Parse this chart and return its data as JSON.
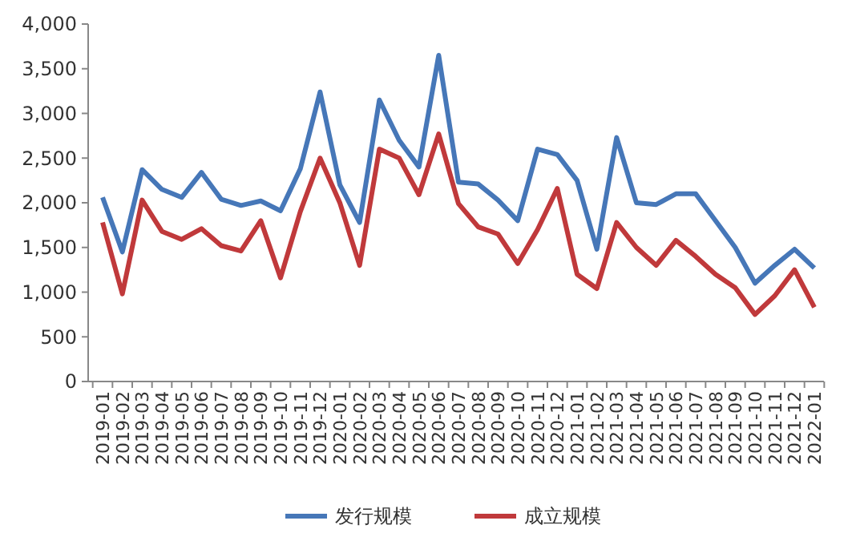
{
  "chart_data": {
    "type": "line",
    "categories": [
      "2019-01",
      "2019-02",
      "2019-03",
      "2019-04",
      "2019-05",
      "2019-06",
      "2019-07",
      "2019-08",
      "2019-09",
      "2019-10",
      "2019-11",
      "2019-12",
      "2020-01",
      "2020-02",
      "2020-03",
      "2020-04",
      "2020-05",
      "2020-06",
      "2020-07",
      "2020-08",
      "2020-09",
      "2020-10",
      "2020-11",
      "2020-12",
      "2021-01",
      "2021-02",
      "2021-03",
      "2021-04",
      "2021-05",
      "2021-06",
      "2021-07",
      "2021-08",
      "2021-09",
      "2021-10",
      "2021-11",
      "2021-12",
      "2022-01"
    ],
    "series": [
      {
        "name": "发行规模",
        "color": "#4677b8",
        "values": [
          2060,
          1450,
          2370,
          2150,
          2060,
          2340,
          2040,
          1970,
          2020,
          1910,
          2380,
          3240,
          2200,
          1780,
          3150,
          2700,
          2400,
          3650,
          2230,
          2210,
          2030,
          1800,
          2600,
          2540,
          2250,
          1480,
          2730,
          2000,
          1980,
          2100,
          2100,
          1800,
          1500,
          1100,
          1300,
          1480,
          1270
        ]
      },
      {
        "name": "成立规模",
        "color": "#c0393b",
        "values": [
          1780,
          980,
          2030,
          1680,
          1590,
          1710,
          1520,
          1460,
          1800,
          1160,
          1900,
          2500,
          2000,
          1300,
          2600,
          2500,
          2090,
          2770,
          1990,
          1730,
          1650,
          1320,
          1700,
          2160,
          1200,
          1040,
          1780,
          1500,
          1300,
          1580,
          1400,
          1200,
          1050,
          750,
          960,
          1250,
          830
        ]
      }
    ],
    "ylim": [
      0,
      4000
    ],
    "yticks": [
      {
        "value": 0,
        "label": "0"
      },
      {
        "value": 500,
        "label": "500"
      },
      {
        "value": 1000,
        "label": "1,000"
      },
      {
        "value": 1500,
        "label": "1,500"
      },
      {
        "value": 2000,
        "label": "2,000"
      },
      {
        "value": 2500,
        "label": "2,500"
      },
      {
        "value": 3000,
        "label": "3,000"
      },
      {
        "value": 3500,
        "label": "3,500"
      },
      {
        "value": 4000,
        "label": "4,000"
      }
    ],
    "legend": "bottom",
    "marker": "none",
    "line_style": "solid"
  }
}
